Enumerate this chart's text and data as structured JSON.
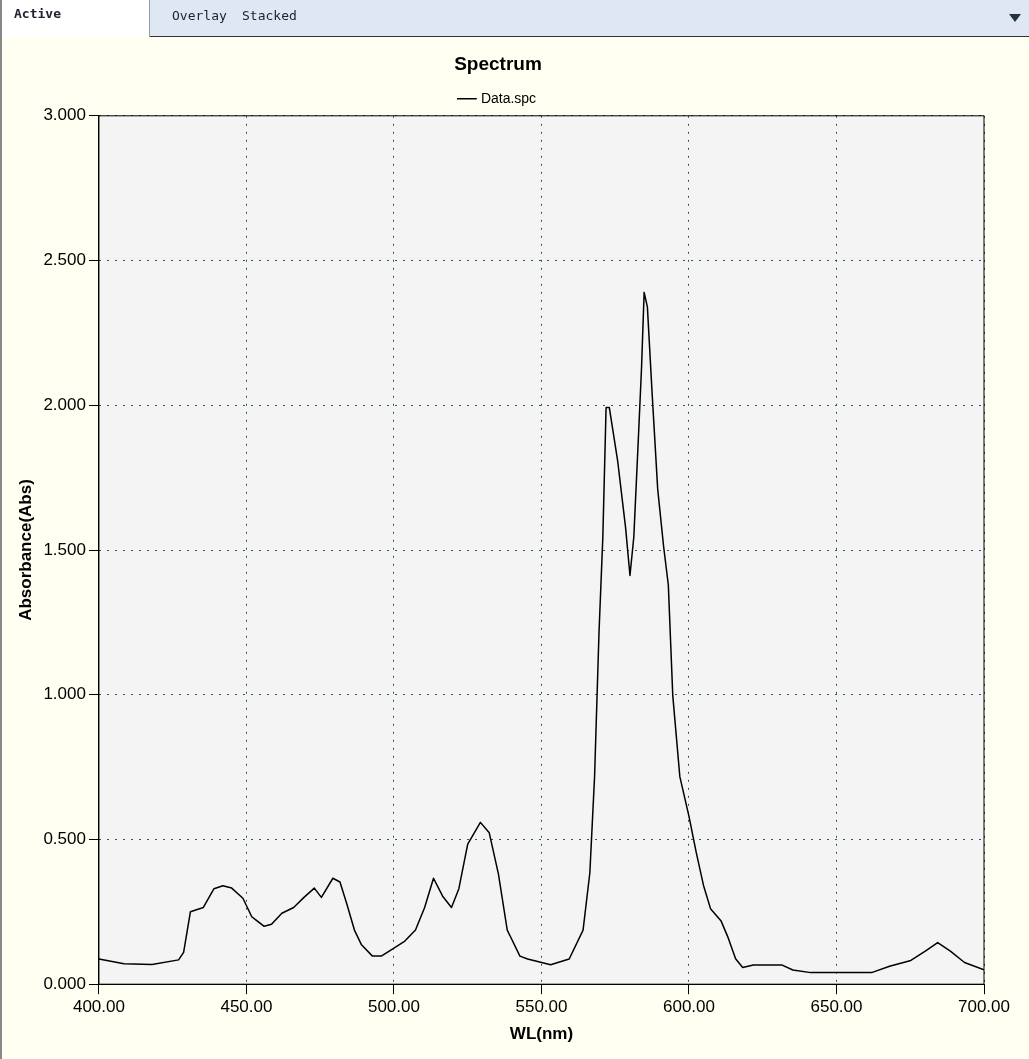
{
  "chart_data": {
    "type": "line",
    "title": "Spectrum",
    "xlabel": "WL(nm)",
    "ylabel": "Absorbance(Abs)",
    "annotations": [
      "Active",
      "Overlay",
      "Stacked"
    ],
    "series": [
      {
        "name": "Data.spc",
        "color": "#000000",
        "x": [
          400,
          408.5,
          418,
          427,
          428.7,
          431,
          435.4,
          439,
          442,
          445,
          448.8,
          451.8,
          456,
          458.5,
          462,
          466,
          469.5,
          473,
          475.4,
          479.3,
          481.7,
          484,
          486.6,
          489,
          492.7,
          495.7,
          500,
          503.7,
          507.3,
          510.4,
          513.4,
          516.5,
          519.5,
          522,
          525,
          529.3,
          532.3,
          535.4,
          538.4,
          542.7,
          545.3,
          553.1,
          559.4,
          564.1,
          566.4,
          568,
          569.5,
          570.8,
          571.9,
          573,
          575.8,
          578.5,
          580,
          581.3,
          582.8,
          583.9,
          584.8,
          585.9,
          587.5,
          589.4,
          591.4,
          593,
          594.5,
          596.9,
          600,
          602.4,
          604.9,
          607.3,
          610.9,
          613.3,
          615.8,
          618.2,
          621.8,
          631.6,
          635.2,
          641.3,
          661.9,
          668,
          675.2,
          680.1,
          684.3,
          688.6,
          693.4,
          700
        ],
        "values": [
          0.087,
          0.071,
          0.068,
          0.084,
          0.11,
          0.25,
          0.265,
          0.33,
          0.34,
          0.332,
          0.297,
          0.233,
          0.2,
          0.207,
          0.245,
          0.265,
          0.3,
          0.332,
          0.3,
          0.366,
          0.353,
          0.278,
          0.187,
          0.136,
          0.097,
          0.097,
          0.125,
          0.149,
          0.187,
          0.265,
          0.366,
          0.304,
          0.265,
          0.33,
          0.484,
          0.559,
          0.523,
          0.381,
          0.187,
          0.097,
          0.087,
          0.067,
          0.087,
          0.187,
          0.385,
          0.717,
          1.214,
          1.545,
          1.992,
          1.992,
          1.81,
          1.578,
          1.412,
          1.545,
          1.876,
          2.125,
          2.39,
          2.34,
          2.042,
          1.71,
          1.512,
          1.379,
          0.998,
          0.717,
          0.58,
          0.458,
          0.342,
          0.261,
          0.218,
          0.16,
          0.088,
          0.058,
          0.066,
          0.066,
          0.049,
          0.04,
          0.04,
          0.062,
          0.082,
          0.114,
          0.144,
          0.114,
          0.075,
          0.05
        ]
      }
    ],
    "xlim": [
      400,
      700
    ],
    "xticks": [
      {
        "value": 400,
        "label": "400.00"
      },
      {
        "value": 450,
        "label": "450.00"
      },
      {
        "value": 500,
        "label": "500.00"
      },
      {
        "value": 550,
        "label": "550.00"
      },
      {
        "value": 600,
        "label": "600.00"
      },
      {
        "value": 650,
        "label": "650.00"
      },
      {
        "value": 700,
        "label": "700.00"
      }
    ],
    "ylim": [
      0,
      3
    ],
    "yticks": [
      {
        "value": 0,
        "label": "0.000"
      },
      {
        "value": 0.5,
        "label": "0.500"
      },
      {
        "value": 1,
        "label": "1.000"
      },
      {
        "value": 1.5,
        "label": "1.500"
      },
      {
        "value": 2,
        "label": "2.000"
      },
      {
        "value": 2.5,
        "label": "2.500"
      },
      {
        "value": 3,
        "label": "3.000"
      }
    ],
    "grid": true,
    "legend": "top",
    "marker": "none",
    "line_style": "solid"
  }
}
